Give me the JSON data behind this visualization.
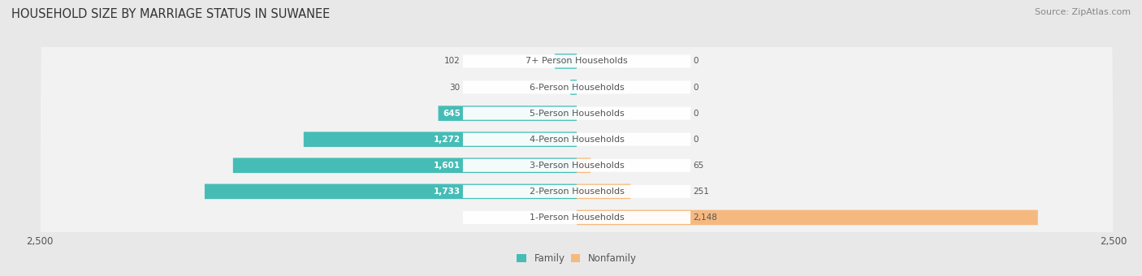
{
  "title": "HOUSEHOLD SIZE BY MARRIAGE STATUS IN SUWANEE",
  "source": "Source: ZipAtlas.com",
  "categories": [
    "7+ Person Households",
    "6-Person Households",
    "5-Person Households",
    "4-Person Households",
    "3-Person Households",
    "2-Person Households",
    "1-Person Households"
  ],
  "family_values": [
    102,
    30,
    645,
    1272,
    1601,
    1733,
    0
  ],
  "nonfamily_values": [
    0,
    0,
    0,
    0,
    65,
    251,
    2148
  ],
  "family_color": "#45BDB6",
  "nonfamily_color": "#F5B97F",
  "axis_limit": 2500,
  "bg_color": "#e8e8e8",
  "row_bg_light": "#f2f2f2",
  "row_bg_dark": "#e0e0e0",
  "label_color": "#555555",
  "title_fontsize": 10.5,
  "source_fontsize": 8,
  "tick_fontsize": 8.5,
  "label_fontsize": 8,
  "value_fontsize": 7.5,
  "legend_fontsize": 8.5
}
